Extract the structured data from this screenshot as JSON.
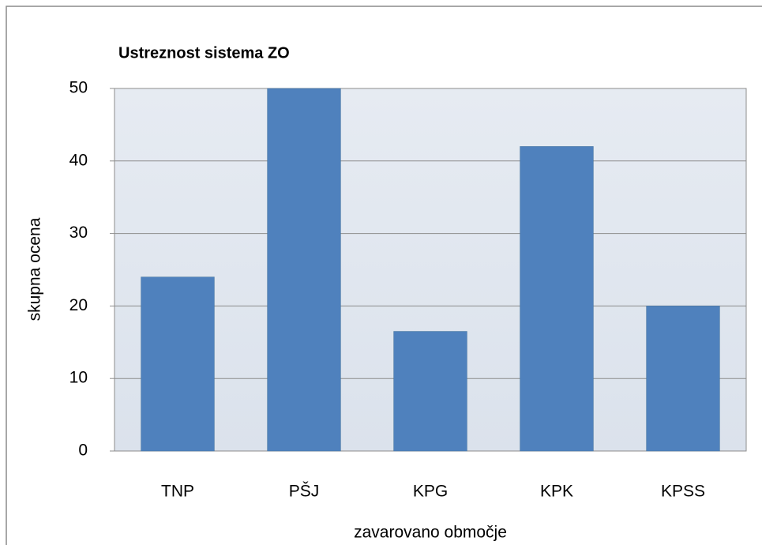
{
  "chart_data": {
    "type": "bar",
    "title": "Ustreznost sistema ZO",
    "xlabel": "zavarovano območje",
    "ylabel": "skupna ocena",
    "categories": [
      "TNP",
      "PŠJ",
      "KPG",
      "KPK",
      "KPSS"
    ],
    "values": [
      24,
      50,
      16.5,
      42,
      20
    ],
    "color": "#4f81bd",
    "ylim": [
      0,
      50
    ],
    "yticks": [
      0,
      10,
      20,
      30,
      40,
      50
    ],
    "grid": true
  }
}
